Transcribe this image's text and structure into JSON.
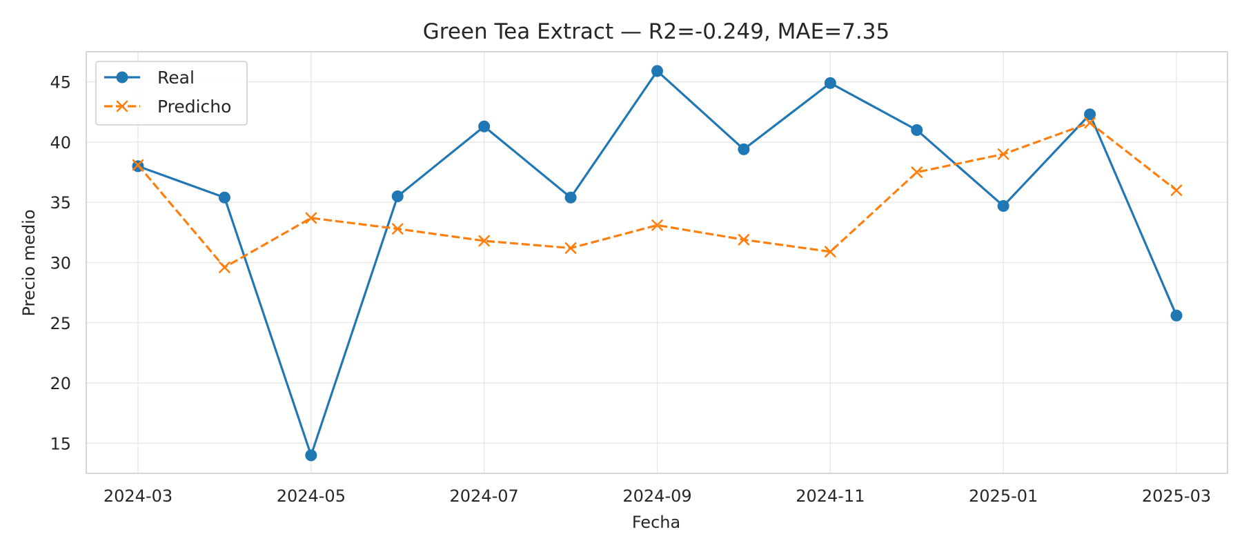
{
  "chart_data": {
    "type": "line",
    "title": "Green Tea Extract — R2=-0.249, MAE=7.35",
    "xlabel": "Fecha",
    "ylabel": "Precio medio",
    "x": [
      "2024-03",
      "2024-04",
      "2024-05",
      "2024-06",
      "2024-07",
      "2024-08",
      "2024-09",
      "2024-10",
      "2024-11",
      "2024-12",
      "2025-01",
      "2025-02",
      "2025-03"
    ],
    "x_ticks": [
      "2024-03",
      "2024-05",
      "2024-07",
      "2024-09",
      "2024-11",
      "2025-01",
      "2025-03"
    ],
    "y_ticks": [
      15,
      20,
      25,
      30,
      35,
      40,
      45
    ],
    "ylim": [
      12.5,
      47.5
    ],
    "grid": true,
    "legend_position": "top-left",
    "series": [
      {
        "name": "Real",
        "color": "#1f77b4",
        "marker": "circle",
        "line_style": "solid",
        "values": [
          38.0,
          35.4,
          14.0,
          35.5,
          41.3,
          35.4,
          45.9,
          39.4,
          44.9,
          41.0,
          34.7,
          42.3,
          25.6
        ]
      },
      {
        "name": "Predicho",
        "color": "#ff7f0e",
        "marker": "x",
        "line_style": "dashed",
        "values": [
          38.1,
          29.6,
          33.7,
          32.8,
          31.8,
          31.2,
          33.1,
          31.9,
          30.9,
          37.5,
          39.0,
          41.6,
          36.0
        ]
      }
    ]
  }
}
